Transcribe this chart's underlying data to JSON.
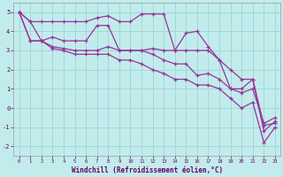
{
  "title": "",
  "xlabel": "Windchill (Refroidissement éolien,°C)",
  "ylabel": "",
  "bg_color": "#c2ecec",
  "grid_color": "#a0d8d8",
  "line_color": "#993399",
  "xlim": [
    -0.5,
    23.5
  ],
  "ylim": [
    -2.5,
    5.5
  ],
  "yticks": [
    -2,
    -1,
    0,
    1,
    2,
    3,
    4,
    5
  ],
  "xticks": [
    0,
    1,
    2,
    3,
    4,
    5,
    6,
    7,
    8,
    9,
    10,
    11,
    12,
    13,
    14,
    15,
    16,
    17,
    18,
    19,
    20,
    21,
    22,
    23
  ],
  "series": [
    [
      5.0,
      4.5,
      4.5,
      4.5,
      4.5,
      4.5,
      4.5,
      4.7,
      4.8,
      4.5,
      4.5,
      4.9,
      4.9,
      4.9,
      3.0,
      3.0,
      3.0,
      3.0,
      2.5,
      2.0,
      1.5,
      1.5,
      -0.9,
      -0.8
    ],
    [
      5.0,
      4.5,
      3.5,
      3.7,
      3.5,
      3.5,
      3.5,
      4.3,
      4.3,
      3.0,
      3.0,
      3.0,
      3.1,
      3.0,
      3.0,
      3.9,
      4.0,
      3.2,
      2.5,
      1.0,
      1.0,
      1.5,
      -1.2,
      -0.7
    ],
    [
      5.0,
      3.5,
      3.5,
      3.2,
      3.1,
      3.0,
      3.0,
      3.0,
      3.2,
      3.0,
      3.0,
      3.0,
      2.8,
      2.5,
      2.3,
      2.3,
      1.7,
      1.8,
      1.5,
      1.0,
      0.8,
      1.0,
      -0.8,
      -0.5
    ],
    [
      5.0,
      3.5,
      3.5,
      3.1,
      3.0,
      2.8,
      2.8,
      2.8,
      2.8,
      2.5,
      2.5,
      2.3,
      2.0,
      1.8,
      1.5,
      1.5,
      1.2,
      1.2,
      1.0,
      0.5,
      0.0,
      0.3,
      -1.8,
      -1.0
    ]
  ]
}
